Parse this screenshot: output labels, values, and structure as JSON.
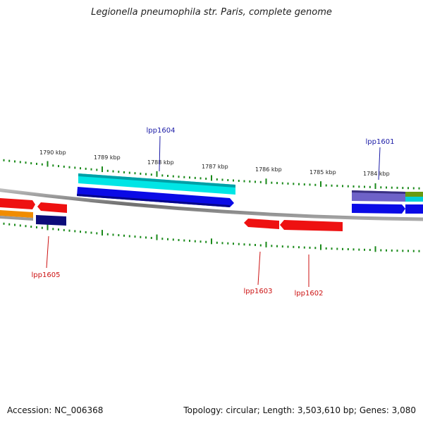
{
  "title": "Legionella pneumophila str. Paris, complete genome",
  "footer": {
    "accession": "Accession: NC_006368",
    "summary": "Topology: circular; Length: 3,503,610 bp; Genes: 3,080"
  },
  "scale_labels": [
    "1790 kbp",
    "1789 kbp",
    "1788 kbp",
    "1787 kbp",
    "1786 kbp",
    "1785 kbp",
    "1784 kbp"
  ],
  "gene_labels": [
    "lpp1604",
    "lpp1601",
    "lpp1605",
    "lpp1603",
    "lpp1602"
  ],
  "colors": {
    "backbone": "#808080",
    "tick": "#1a8a1a",
    "forward_label": "#1a1aa6",
    "reverse_label": "#cc1111",
    "cds_cyan": "#00e5e5",
    "cds_blue": "#0a0ae6",
    "cds_red": "#ee1111",
    "cds_navy": "#0c0c7a",
    "cds_slate": "#6e62c8",
    "cds_orange": "#f08c00",
    "cds_olive": "#6a9a10"
  }
}
